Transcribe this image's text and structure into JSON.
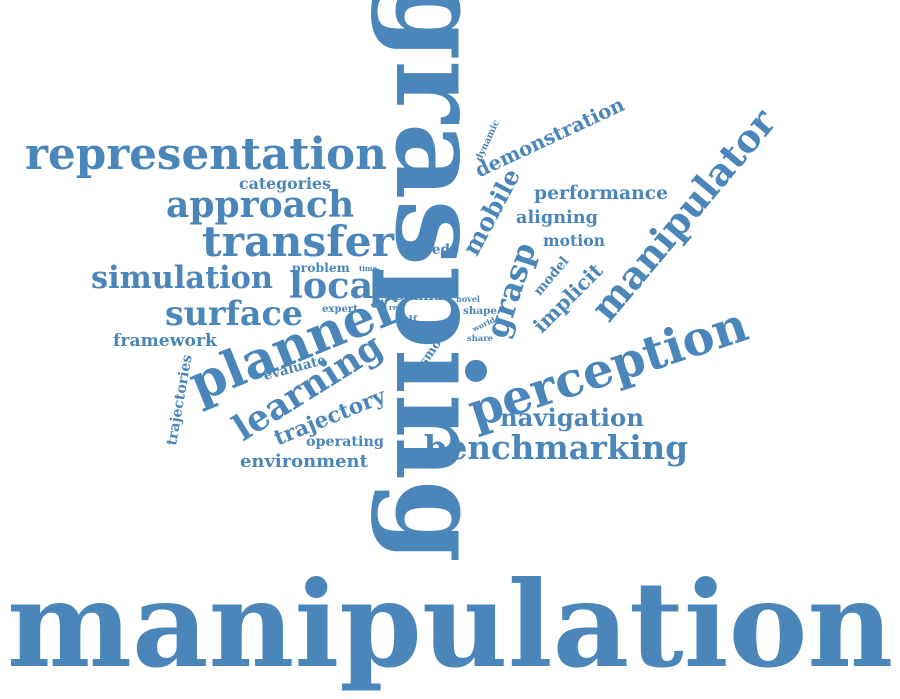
{
  "color": "#4a86b9",
  "words": [
    {
      "id": "manipulation",
      "text": "manipulation"
    },
    {
      "id": "grasping",
      "text": "grasping"
    },
    {
      "id": "manipulator",
      "text": "manipulator"
    },
    {
      "id": "perception",
      "text": "perception"
    },
    {
      "id": "representation",
      "text": "representation"
    },
    {
      "id": "planner",
      "text": "planner"
    },
    {
      "id": "benchmarking",
      "text": "benchmarking"
    },
    {
      "id": "learning",
      "text": "learning"
    },
    {
      "id": "approach",
      "text": "approach"
    },
    {
      "id": "transfer",
      "text": "transfer"
    },
    {
      "id": "local",
      "text": "local"
    },
    {
      "id": "simulation",
      "text": "simulation"
    },
    {
      "id": "surface",
      "text": "surface"
    },
    {
      "id": "grasp",
      "text": "grasp"
    },
    {
      "id": "navigation",
      "text": "navigation"
    },
    {
      "id": "trajectory",
      "text": "trajectory"
    },
    {
      "id": "environment",
      "text": "environment"
    },
    {
      "id": "demonstration",
      "text": "demonstration"
    },
    {
      "id": "performance",
      "text": "performance"
    },
    {
      "id": "mobile",
      "text": "mobile"
    },
    {
      "id": "implicit",
      "text": "implicit"
    },
    {
      "id": "aligning",
      "text": "aligning"
    },
    {
      "id": "framework",
      "text": "framework"
    },
    {
      "id": "trajectories",
      "text": "trajectories"
    },
    {
      "id": "categories",
      "text": "categories"
    },
    {
      "id": "motion",
      "text": "motion"
    },
    {
      "id": "model",
      "text": "model"
    },
    {
      "id": "operating",
      "text": "operating"
    },
    {
      "id": "evaluate",
      "text": "evaluate"
    },
    {
      "id": "similar",
      "text": "similar"
    },
    {
      "id": "based",
      "text": "based"
    },
    {
      "id": "problem",
      "text": "problem"
    },
    {
      "id": "dynamic",
      "text": "dynamic"
    },
    {
      "id": "smooth",
      "text": "smooth"
    },
    {
      "id": "expert",
      "text": "expert"
    },
    {
      "id": "shape",
      "text": "shape"
    },
    {
      "id": "novel",
      "text": "novel"
    },
    {
      "id": "share",
      "text": "share"
    },
    {
      "id": "world",
      "text": "world"
    },
    {
      "id": "self",
      "text": "self"
    },
    {
      "id": "time",
      "text": "time"
    },
    {
      "id": "real",
      "text": "real"
    }
  ]
}
